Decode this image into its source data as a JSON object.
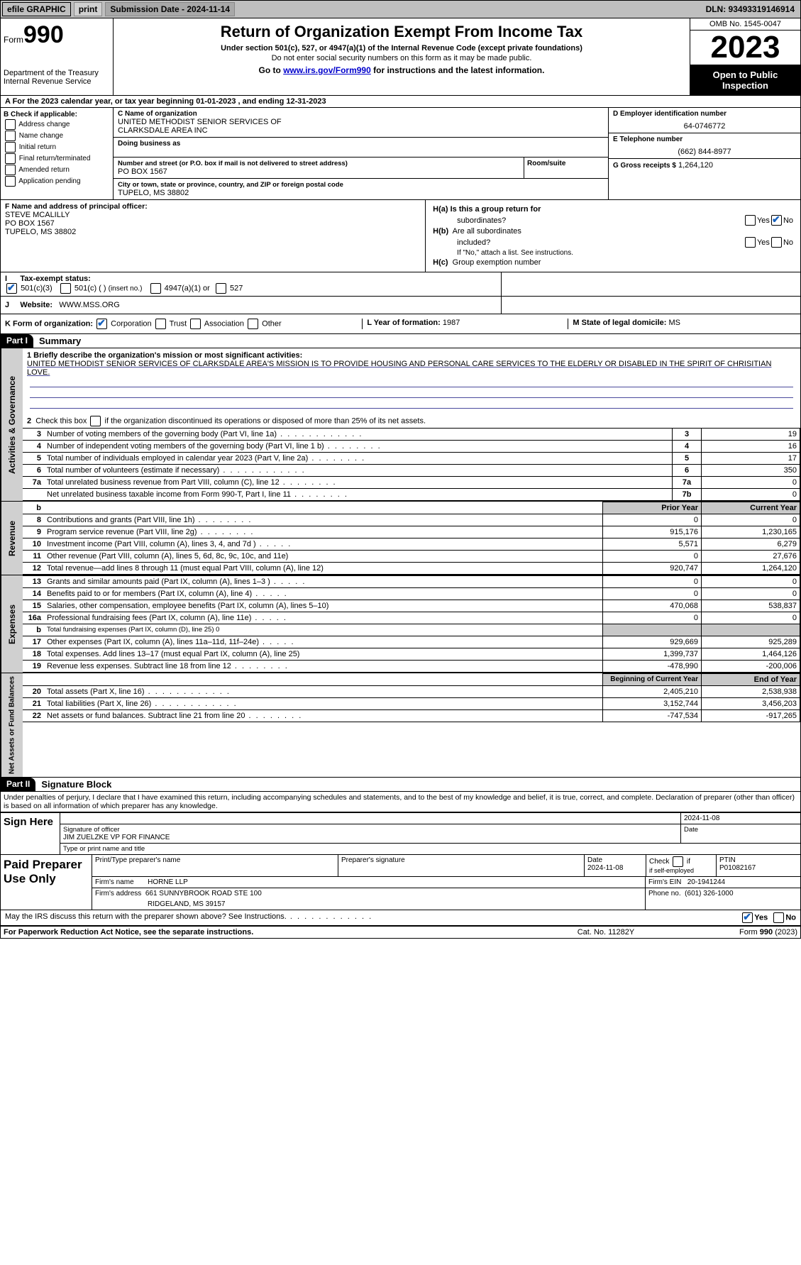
{
  "colors": {
    "bar_bg": "#bfbfbf",
    "link": "#0000cc",
    "black": "#000000",
    "shade": "#c8c8c8",
    "check": "#1560bd",
    "sidelabel_bg": "#d0d0d0",
    "underline": "#4a4a9c"
  },
  "topbar": {
    "efile": "efile GRAPHIC",
    "print": "print",
    "subdate_label": "Submission Date - 2024-11-14",
    "dln": "DLN: 93493319146914"
  },
  "header": {
    "form_label": "Form",
    "form_num": "990",
    "dept": "Department of the Treasury",
    "irs": "Internal Revenue Service",
    "title": "Return of Organization Exempt From Income Tax",
    "sub": "Under section 501(c), 527, or 4947(a)(1) of the Internal Revenue Code (except private foundations)",
    "ssn": "Do not enter social security numbers on this form as it may be made public.",
    "goto_pre": "Go to ",
    "goto_link": "www.irs.gov/Form990",
    "goto_post": " for instructions and the latest information.",
    "omb": "OMB No. 1545-0047",
    "year": "2023",
    "open": "Open to Public Inspection"
  },
  "rowA": "A  For the 2023 calendar year, or tax year beginning 01-01-2023    , and ending 12-31-2023",
  "B": {
    "hdr": "B Check if applicable:",
    "items": [
      "Address change",
      "Name change",
      "Initial return",
      "Final return/terminated",
      "Amended return",
      "Application pending"
    ]
  },
  "C": {
    "name_lbl": "C Name of organization",
    "name1": "UNITED METHODIST SENIOR SERVICES OF",
    "name2": "CLARKSDALE AREA INC",
    "dba_lbl": "Doing business as",
    "addr_lbl": "Number and street (or P.O. box if mail is not delivered to street address)",
    "room_lbl": "Room/suite",
    "addr": "PO BOX 1567",
    "city_lbl": "City or town, state or province, country, and ZIP or foreign postal code",
    "city": "TUPELO, MS  38802"
  },
  "D": {
    "lbl": "D Employer identification number",
    "val": "64-0746772"
  },
  "E": {
    "lbl": "E Telephone number",
    "val": "(662) 844-8977"
  },
  "G": {
    "lbl": "G Gross receipts $",
    "val": "1,264,120"
  },
  "F": {
    "lbl": "F  Name and address of principal officer:",
    "l1": "STEVE MCALILLY",
    "l2": "PO BOX 1567",
    "l3": "TUPELO, MS  38802"
  },
  "H": {
    "a": "H(a)  Is this a group return for",
    "a2": "subordinates?",
    "b": "H(b)  Are all subordinates included?",
    "bnote": "If \"No,\" attach a list. See instructions.",
    "c": "H(c)  Group exemption number",
    "yes": "Yes",
    "no": "No"
  },
  "I": {
    "lbl": "I      Tax-exempt status:",
    "o1": "501(c)(3)",
    "o2a": "501(c) (   ) ",
    "o2b": "(insert no.)",
    "o3": "4947(a)(1) or",
    "o4": "527"
  },
  "J": {
    "lbl": "J      Website: ",
    "val": "WWW.MSS.ORG"
  },
  "K": {
    "lbl": "K Form of organization:",
    "o1": "Corporation",
    "o2": "Trust",
    "o3": "Association",
    "o4": "Other"
  },
  "L": {
    "lbl": "L Year of formation:",
    "val": "1987"
  },
  "M": {
    "lbl": "M State of legal domicile:",
    "val": "MS"
  },
  "part1": {
    "label": "Part I",
    "title": "Summary"
  },
  "summary": {
    "line1_lbl": "1   Briefly describe the organization's mission or most significant activities:",
    "mission": "UNITED METHODIST SENIOR SERVICES OF CLARKSDALE AREA'S MISSION IS TO PROVIDE HOUSING AND PERSONAL CARE SERVICES TO THE ELDERLY OR DISABLED IN THE SPIRIT OF CHRISITIAN LOVE.",
    "line2": "2   Check this box      if the organization discontinued its operations or disposed of more than 25% of its net assets.",
    "rows_a": [
      {
        "n": "3",
        "t": "Number of voting members of the governing body (Part VI, line 1a)",
        "box": "3",
        "v": "19",
        "d": "dots"
      },
      {
        "n": "4",
        "t": "Number of independent voting members of the governing body (Part VI, line 1 b)",
        "box": "4",
        "v": "16",
        "d": "dots-m"
      },
      {
        "n": "5",
        "t": "Total number of individuals employed in calendar year 2023 (Part V, line 2a)",
        "box": "5",
        "v": "17",
        "d": "dots-m"
      },
      {
        "n": "6",
        "t": "Total number of volunteers (estimate if necessary)",
        "box": "6",
        "v": "350",
        "d": "dots"
      },
      {
        "n": "7a",
        "t": "Total unrelated business revenue from Part VIII, column (C), line 12",
        "box": "7a",
        "v": "0",
        "d": "dots-m"
      },
      {
        "n": "",
        "t": "Net unrelated business taxable income from Form 990-T, Part I, line 11",
        "box": "7b",
        "v": "0",
        "d": "dots-m"
      }
    ],
    "prior": "Prior Year",
    "current": "Current Year",
    "revenue": [
      {
        "n": "8",
        "t": "Contributions and grants (Part VIII, line 1h)",
        "d": "dots-m",
        "p": "0",
        "c": "0"
      },
      {
        "n": "9",
        "t": "Program service revenue (Part VIII, line 2g)",
        "d": "dots-m",
        "p": "915,176",
        "c": "1,230,165"
      },
      {
        "n": "10",
        "t": "Investment income (Part VIII, column (A), lines 3, 4, and 7d )",
        "d": "dots-s",
        "p": "5,571",
        "c": "6,279"
      },
      {
        "n": "11",
        "t": "Other revenue (Part VIII, column (A), lines 5, 6d, 8c, 9c, 10c, and 11e)",
        "d": "",
        "p": "0",
        "c": "27,676"
      },
      {
        "n": "12",
        "t": "Total revenue—add lines 8 through 11 (must equal Part VIII, column (A), line 12)",
        "d": "",
        "p": "920,747",
        "c": "1,264,120"
      }
    ],
    "expenses": [
      {
        "n": "13",
        "t": "Grants and similar amounts paid (Part IX, column (A), lines 1–3 )",
        "d": "dots-s",
        "p": "0",
        "c": "0"
      },
      {
        "n": "14",
        "t": "Benefits paid to or for members (Part IX, column (A), line 4)",
        "d": "dots-s",
        "p": "0",
        "c": "0"
      },
      {
        "n": "15",
        "t": "Salaries, other compensation, employee benefits (Part IX, column (A), lines 5–10)",
        "d": "",
        "p": "470,068",
        "c": "538,837"
      },
      {
        "n": "16a",
        "t": "Professional fundraising fees (Part IX, column (A), line 11e)",
        "d": "dots-s",
        "p": "0",
        "c": "0"
      },
      {
        "n": "b",
        "t": "Total fundraising expenses (Part IX, column (D), line 25) 0",
        "d": "",
        "p": "shade",
        "c": "shade"
      },
      {
        "n": "17",
        "t": "Other expenses (Part IX, column (A), lines 11a–11d, 11f–24e)",
        "d": "dots-s",
        "p": "929,669",
        "c": "925,289"
      },
      {
        "n": "18",
        "t": "Total expenses. Add lines 13–17 (must equal Part IX, column (A), line 25)",
        "d": "",
        "p": "1,399,737",
        "c": "1,464,126"
      },
      {
        "n": "19",
        "t": "Revenue less expenses. Subtract line 18 from line 12",
        "d": "dots-m",
        "p": "-478,990",
        "c": "-200,006"
      }
    ],
    "begin": "Beginning of Current Year",
    "end": "End of Year",
    "netassets": [
      {
        "n": "20",
        "t": "Total assets (Part X, line 16)",
        "d": "dots",
        "p": "2,405,210",
        "c": "2,538,938"
      },
      {
        "n": "21",
        "t": "Total liabilities (Part X, line 26)",
        "d": "dots",
        "p": "3,152,744",
        "c": "3,456,203"
      },
      {
        "n": "22",
        "t": "Net assets or fund balances. Subtract line 21 from line 20",
        "d": "dots-m",
        "p": "-747,534",
        "c": "-917,265"
      }
    ]
  },
  "sidelabels": {
    "ag": "Activities & Governance",
    "rev": "Revenue",
    "exp": "Expenses",
    "net": "Net Assets or Fund Balances"
  },
  "part2": {
    "label": "Part II",
    "title": "Signature Block"
  },
  "penalty": "Under penalties of perjury, I declare that I have examined this return, including accompanying schedules and statements, and to the best of my knowledge and belief, it is true, correct, and complete. Declaration of preparer (other than officer) is based on all information of which preparer has any knowledge.",
  "sign": {
    "here": "Sign Here",
    "sigoff": "Signature of officer",
    "date": "Date",
    "date1": "2024-11-08",
    "officer": "JIM ZUELZKE  VP FOR FINANCE",
    "typelbl": "Type or print name and title"
  },
  "paid": {
    "label": "Paid Preparer Use Only",
    "r1": {
      "c1": "Print/Type preparer's name",
      "c2": "Preparer's signature",
      "c3": "Date",
      "c3v": "2024-11-08",
      "c4a": "Check",
      "c4b": "if self-employed",
      "c5": "PTIN",
      "c5v": "P01082167"
    },
    "r2": {
      "c1": "Firm's name",
      "c1v": "HORNE LLP",
      "c2": "Firm's EIN",
      "c2v": "20-1941244"
    },
    "r3": {
      "c1": "Firm's address",
      "c1v": "661 SUNNYBROOK ROAD STE 100",
      "c1v2": "RIDGELAND, MS  39157",
      "c2": "Phone no.",
      "c2v": "(601) 326-1000"
    }
  },
  "may": {
    "text": "May the IRS discuss this return with the preparer shown above? See Instructions.",
    "yes": "Yes",
    "no": "No"
  },
  "footer": {
    "left": "For Paperwork Reduction Act Notice, see the separate instructions.",
    "mid": "Cat. No. 11282Y",
    "right_pre": "Form ",
    "right_b": "990",
    "right_post": " (2023)"
  }
}
